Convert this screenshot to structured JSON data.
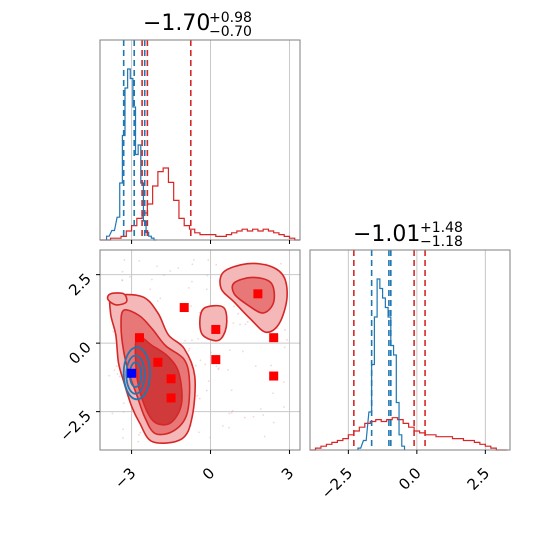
{
  "titles": {
    "panel_x": {
      "median": "−1.70",
      "plus": "+0.98",
      "minus": "−0.70"
    },
    "panel_y": {
      "median": "−1.01",
      "plus": "+1.48",
      "minus": "−1.18"
    }
  },
  "colors": {
    "blue": "#1f77b4",
    "red": "#d62728",
    "grid": "#c8c8c8",
    "axis": "#7f7f7f"
  },
  "chart_data": {
    "type": "corner",
    "grid": true,
    "ranges": {
      "x": [
        -4.2,
        3.4
      ],
      "y": [
        -3.9,
        3.4
      ]
    },
    "x_ticks": [
      -3,
      0,
      3
    ],
    "x_tick_labels": [
      "−3",
      "0",
      "3"
    ],
    "y_ticks": [
      -2.5,
      0.0,
      2.5
    ],
    "y_tick_labels": [
      "−2.5",
      "0.0",
      "2.5"
    ],
    "hist_x": {
      "blue": {
        "centers": [
          -3.9,
          -3.7,
          -3.5,
          -3.4,
          -3.3,
          -3.2,
          -3.1,
          -3.0,
          -2.9,
          -2.8,
          -2.7,
          -2.6,
          -2.5,
          -2.4,
          -2.3,
          -2.2,
          -2.1
        ],
        "values": [
          0.02,
          0.05,
          0.12,
          0.3,
          0.55,
          0.8,
          0.9,
          0.85,
          0.7,
          0.45,
          0.5,
          0.3,
          0.1,
          0.04,
          0.02,
          0.01,
          0.0
        ],
        "quantiles": [
          -3.3,
          -2.9,
          -2.5
        ]
      },
      "red": {
        "centers": [
          -4.1,
          -3.9,
          -3.7,
          -3.5,
          -3.3,
          -3.1,
          -2.9,
          -2.7,
          -2.5,
          -2.3,
          -2.1,
          -1.9,
          -1.7,
          -1.5,
          -1.3,
          -1.1,
          -0.9,
          -0.7,
          -0.5,
          -0.3,
          -0.1,
          0.1,
          0.3,
          0.5,
          0.7,
          0.9,
          1.1,
          1.3,
          1.5,
          1.7,
          1.9,
          2.1,
          2.3,
          2.5,
          2.7,
          2.9,
          3.1,
          3.3
        ],
        "values": [
          0.0,
          0.0,
          0.01,
          0.01,
          0.02,
          0.05,
          0.08,
          0.12,
          0.15,
          0.2,
          0.3,
          0.38,
          0.4,
          0.32,
          0.22,
          0.12,
          0.08,
          0.06,
          0.04,
          0.03,
          0.03,
          0.03,
          0.02,
          0.02,
          0.03,
          0.04,
          0.05,
          0.06,
          0.05,
          0.06,
          0.05,
          0.06,
          0.05,
          0.04,
          0.03,
          0.02,
          0.01,
          0.0
        ],
        "quantiles": [
          -2.6,
          -2.4,
          -0.75
        ]
      }
    },
    "hist_y": {
      "blue": {
        "centers": [
          -2.1,
          -1.9,
          -1.7,
          -1.6,
          -1.5,
          -1.4,
          -1.3,
          -1.2,
          -1.1,
          -1.0,
          -0.9,
          -0.8,
          -0.7,
          -0.6,
          -0.5
        ],
        "values": [
          0.01,
          0.05,
          0.2,
          0.45,
          0.7,
          0.9,
          0.85,
          0.8,
          0.75,
          0.7,
          0.55,
          0.5,
          0.25,
          0.08,
          0.02
        ],
        "quantiles": [
          -1.65,
          -1.02,
          -0.95
        ]
      },
      "red": {
        "centers": [
          -3.8,
          -3.6,
          -3.4,
          -3.2,
          -3.0,
          -2.8,
          -2.6,
          -2.4,
          -2.2,
          -2.0,
          -1.8,
          -1.6,
          -1.4,
          -1.2,
          -1.0,
          -0.8,
          -0.6,
          -0.4,
          -0.2,
          0.0,
          0.2,
          0.4,
          0.6,
          0.8,
          1.0,
          1.2,
          1.4,
          1.6,
          1.8,
          2.0,
          2.2,
          2.4,
          2.6,
          2.8,
          3.0,
          3.2
        ],
        "values": [
          0.0,
          0.01,
          0.02,
          0.03,
          0.04,
          0.05,
          0.06,
          0.08,
          0.1,
          0.12,
          0.14,
          0.15,
          0.16,
          0.15,
          0.16,
          0.17,
          0.16,
          0.14,
          0.12,
          0.1,
          0.09,
          0.08,
          0.08,
          0.07,
          0.07,
          0.07,
          0.06,
          0.06,
          0.05,
          0.05,
          0.04,
          0.03,
          0.02,
          0.01,
          0.0,
          0.0
        ],
        "quantiles": [
          -2.3,
          -0.1,
          0.3
        ]
      }
    },
    "contours_red": {
      "outer": [
        [
          -3.7,
          1.7
        ],
        [
          -2.6,
          1.7
        ],
        [
          -2.0,
          1.1
        ],
        [
          -1.6,
          0.3
        ],
        [
          -1.0,
          -0.2
        ],
        [
          -0.6,
          -1.2
        ],
        [
          -0.7,
          -2.7
        ],
        [
          -1.1,
          -3.5
        ],
        [
          -2.2,
          -3.6
        ],
        [
          -2.7,
          -2.9
        ],
        [
          -3.0,
          -2.3
        ],
        [
          -3.3,
          -1.4
        ],
        [
          -3.5,
          -0.7
        ],
        [
          -3.6,
          0.3
        ],
        [
          -3.8,
          1.1
        ]
      ],
      "mid": [
        [
          -3.3,
          1.2
        ],
        [
          -2.7,
          1.0
        ],
        [
          -2.2,
          0.5
        ],
        [
          -1.7,
          -0.1
        ],
        [
          -1.0,
          -0.6
        ],
        [
          -0.8,
          -1.4
        ],
        [
          -0.9,
          -2.6
        ],
        [
          -1.4,
          -3.2
        ],
        [
          -2.1,
          -3.3
        ],
        [
          -2.5,
          -2.7
        ],
        [
          -2.8,
          -1.9
        ],
        [
          -3.1,
          -1.1
        ],
        [
          -3.3,
          -0.3
        ],
        [
          -3.4,
          0.6
        ]
      ],
      "inner": [
        [
          -2.8,
          0.2
        ],
        [
          -2.2,
          -0.1
        ],
        [
          -1.6,
          -0.5
        ],
        [
          -1.2,
          -1.1
        ],
        [
          -1.1,
          -2.2
        ],
        [
          -1.5,
          -2.9
        ],
        [
          -2.1,
          -2.9
        ],
        [
          -2.5,
          -2.3
        ],
        [
          -2.8,
          -1.2
        ]
      ],
      "island_a": [
        [
          0.5,
          2.6
        ],
        [
          1.4,
          2.9
        ],
        [
          2.3,
          2.8
        ],
        [
          2.8,
          2.4
        ],
        [
          2.9,
          1.6
        ],
        [
          2.6,
          0.7
        ],
        [
          2.1,
          0.4
        ],
        [
          1.5,
          0.9
        ],
        [
          0.9,
          1.5
        ],
        [
          0.4,
          2.0
        ]
      ],
      "island_a_inner": [
        [
          0.9,
          2.2
        ],
        [
          1.6,
          2.4
        ],
        [
          2.3,
          2.2
        ],
        [
          2.4,
          1.5
        ],
        [
          2.0,
          1.1
        ],
        [
          1.4,
          1.4
        ],
        [
          0.9,
          1.8
        ]
      ],
      "island_b": [
        [
          -0.2,
          1.3
        ],
        [
          0.5,
          1.3
        ],
        [
          0.6,
          0.6
        ],
        [
          0.3,
          0.1
        ],
        [
          -0.3,
          0.3
        ],
        [
          -0.4,
          0.9
        ]
      ],
      "island_c": [
        [
          -3.8,
          1.8
        ],
        [
          -3.3,
          1.8
        ],
        [
          -3.2,
          1.5
        ],
        [
          -3.6,
          1.4
        ],
        [
          -3.9,
          1.6
        ]
      ]
    },
    "contours_blue": [
      {
        "cx": -2.8,
        "cy": -1.1,
        "rx": 0.5,
        "ry": 0.95
      },
      {
        "cx": -2.85,
        "cy": -1.15,
        "rx": 0.35,
        "ry": 0.7
      },
      {
        "cx": -2.85,
        "cy": -1.15,
        "rx": 0.22,
        "ry": 0.45
      }
    ],
    "points_red": [
      [
        -2.7,
        0.2
      ],
      [
        -1.0,
        1.3
      ],
      [
        0.2,
        0.5
      ],
      [
        1.8,
        1.8
      ],
      [
        2.4,
        0.2
      ],
      [
        -2.0,
        -0.7
      ],
      [
        -1.5,
        -1.3
      ],
      [
        -1.5,
        -2.0
      ],
      [
        0.2,
        -0.6
      ],
      [
        2.4,
        -1.2
      ]
    ],
    "point_blue": [
      -3.0,
      -1.1
    ]
  }
}
